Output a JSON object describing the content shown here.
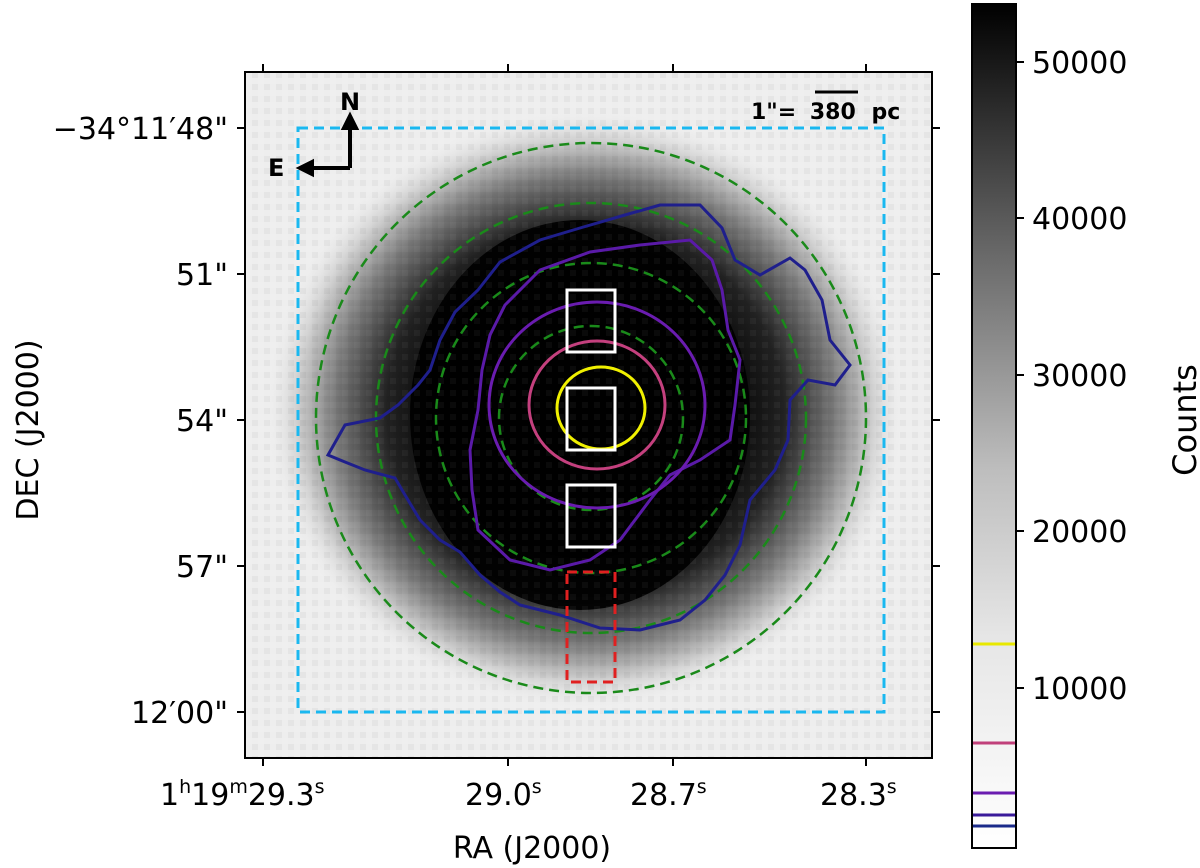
{
  "image": {
    "description_kind": "astronomical grayscale image with contours",
    "compass": {
      "north": "N",
      "east": "E"
    },
    "scale_bar": {
      "prefix": "1\"=",
      "value": "380",
      "unit": "pc"
    },
    "x_axis": {
      "label": "RA (J2000)",
      "ticks": [
        {
          "h": "1",
          "m": "19",
          "s": "29.3"
        },
        {
          "s": "29.0"
        },
        {
          "s": "28.7"
        },
        {
          "s": "28.3"
        }
      ]
    },
    "y_axis": {
      "label": "DEC (J2000)",
      "ticks": [
        "−34°11′48\"",
        "51\"",
        "54\"",
        "57\"",
        "12′00\""
      ]
    },
    "colorbar": {
      "label": "Counts",
      "ticks": [
        "50000",
        "40000",
        "30000",
        "20000",
        "10000"
      ],
      "contour_levels": [
        {
          "color": "#e8e800"
        },
        {
          "color": "#c0407a"
        },
        {
          "color": "#6a1cb0"
        },
        {
          "color": "#3a1a9a"
        },
        {
          "color": "#1a2a8a"
        }
      ]
    },
    "colors": {
      "outer_contour": "#1f1f8c",
      "mid_contour": "#5a1aa8",
      "inner_contour": "#c4407e",
      "core_contour": "#f0f000",
      "annuli": "#1a8a1a",
      "field_box": "#1ab8f0",
      "background_box": "#e02020",
      "apertures": "#ffffff"
    }
  }
}
